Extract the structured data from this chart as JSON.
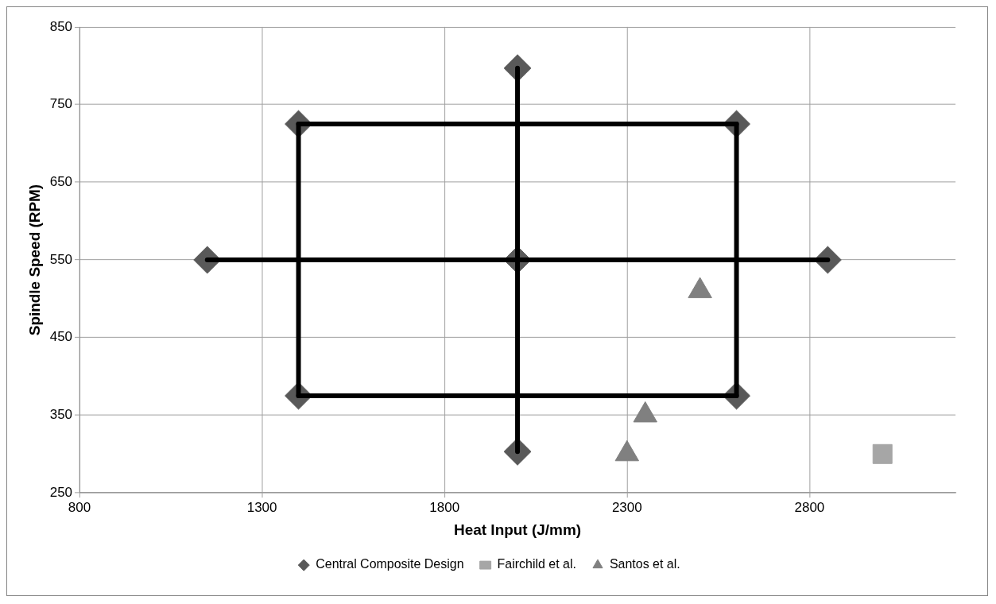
{
  "chart_data": {
    "type": "scatter",
    "xlabel": "Heat Input (J/mm)",
    "ylabel": "Spindle Speed (RPM)",
    "xlim": [
      800,
      3200
    ],
    "xticks": [
      800,
      1300,
      1800,
      2300,
      2800
    ],
    "ylim": [
      250,
      850
    ],
    "yticks": [
      250,
      350,
      450,
      550,
      650,
      750,
      850
    ],
    "grid": true,
    "legend": "bottom",
    "series": [
      {
        "type": "line",
        "color": "#000000",
        "marker": "none",
        "x": [
          1400,
          2600
        ],
        "values": [
          725,
          725
        ]
      },
      {
        "type": "line",
        "color": "#000000",
        "marker": "none",
        "x": [
          1400,
          2600
        ],
        "values": [
          375,
          375
        ]
      },
      {
        "type": "line",
        "color": "#000000",
        "marker": "none",
        "x": [
          1400,
          1400
        ],
        "values": [
          375,
          725
        ]
      },
      {
        "type": "line",
        "color": "#000000",
        "marker": "none",
        "x": [
          2600,
          2600
        ],
        "values": [
          375,
          725
        ]
      },
      {
        "type": "line",
        "color": "#000000",
        "marker": "none",
        "x": [
          1150,
          2850
        ],
        "values": [
          550,
          550
        ]
      },
      {
        "type": "line",
        "color": "#000000",
        "marker": "none",
        "x": [
          2000,
          2000
        ],
        "values": [
          303,
          797
        ]
      },
      {
        "name": "Central Composite Design",
        "type": "scatter",
        "color": "#595959",
        "marker": "diamond",
        "x": [
          1150,
          1400,
          1400,
          2000,
          2000,
          2000,
          2600,
          2600,
          2850
        ],
        "values": [
          550,
          725,
          375,
          797,
          550,
          303,
          725,
          375,
          550
        ]
      },
      {
        "name": "Fairchild et al.",
        "type": "scatter",
        "color": "#a6a6a6",
        "marker": "square",
        "x": [
          3000
        ],
        "values": [
          300
        ]
      },
      {
        "name": "Santos et al.",
        "type": "scatter",
        "color": "#808080",
        "marker": "triangle",
        "x": [
          2300,
          2350,
          2500
        ],
        "values": [
          300,
          350,
          510
        ]
      }
    ]
  }
}
